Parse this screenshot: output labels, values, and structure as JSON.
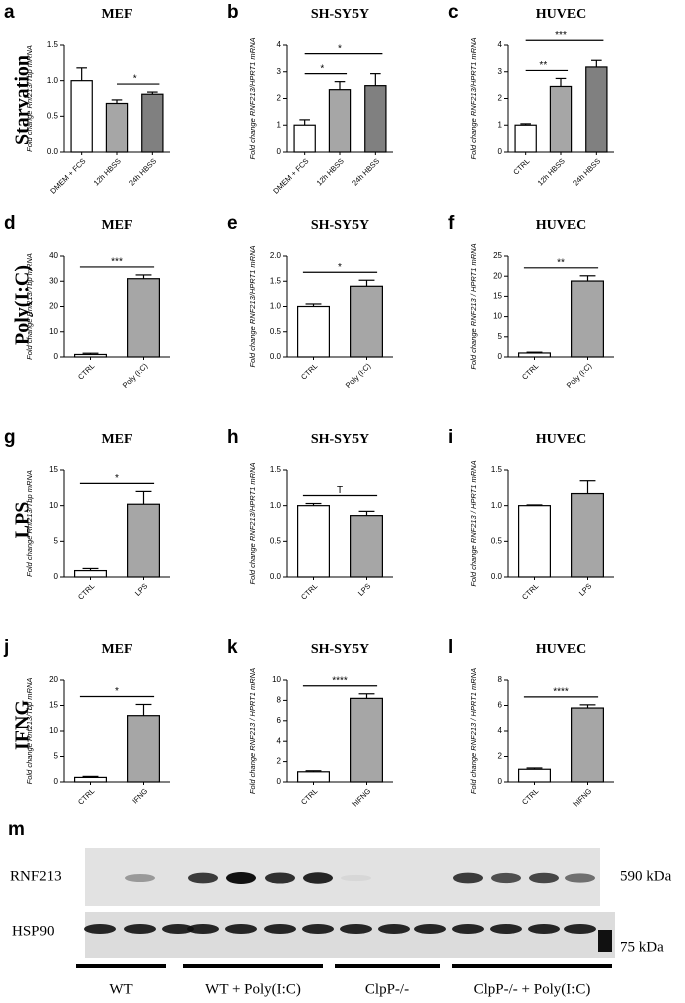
{
  "chart_data": [
    {
      "type": "bar",
      "panel": "a",
      "title": "MEF",
      "ylabel": "Fold change Rnf213/Tbp mRNA",
      "categories": [
        "DMEM + FCS",
        "12h HBSS",
        "24h HBSS"
      ],
      "values": [
        1.0,
        0.68,
        0.81
      ],
      "errors": [
        0.18,
        0.05,
        0.03
      ],
      "colors": [
        "#ffffff",
        "#a6a6a6",
        "#808080"
      ],
      "ylim": [
        0,
        1.5
      ],
      "yticks": [
        {
          "value": 0,
          "label": "0.0"
        },
        {
          "value": 0.5,
          "label": "0.5"
        },
        {
          "value": 1,
          "label": "1.0"
        },
        {
          "value": 1.5,
          "label": "1.5"
        }
      ],
      "annotations": [
        {
          "label": "*",
          "from": "12h HBSS",
          "to": "24h HBSS"
        }
      ]
    },
    {
      "type": "bar",
      "panel": "b",
      "title": "SH-SY5Y",
      "ylabel": "Fold change RNF213/HPRT1 mRNA",
      "categories": [
        "DMEM + FCS",
        "12h HBSS",
        "24h HBSS"
      ],
      "values": [
        1.0,
        2.33,
        2.48
      ],
      "errors": [
        0.2,
        0.3,
        0.45
      ],
      "colors": [
        "#ffffff",
        "#a6a6a6",
        "#808080"
      ],
      "ylim": [
        0,
        4
      ],
      "yticks": [
        0,
        1,
        2,
        3,
        4
      ],
      "annotations": [
        {
          "label": "*",
          "from": "DMEM + FCS",
          "to": "12h HBSS"
        },
        {
          "label": "*",
          "from": "DMEM + FCS",
          "to": "24h HBSS"
        }
      ]
    },
    {
      "type": "bar",
      "panel": "c",
      "title": "HUVEC",
      "ylabel": "Fold change RNF213/HPRT1 mRNA",
      "categories": [
        "CTRL",
        "12h HBSS",
        "24h HBSS"
      ],
      "values": [
        1.0,
        2.45,
        3.18
      ],
      "errors": [
        0.05,
        0.3,
        0.25
      ],
      "colors": [
        "#ffffff",
        "#a6a6a6",
        "#808080"
      ],
      "ylim": [
        0,
        4
      ],
      "yticks": [
        0,
        1,
        2,
        3,
        4
      ],
      "annotations": [
        {
          "label": "**",
          "from": "CTRL",
          "to": "12h HBSS"
        },
        {
          "label": "***",
          "from": "CTRL",
          "to": "24h HBSS"
        }
      ]
    },
    {
      "type": "bar",
      "panel": "d",
      "title": "MEF",
      "ylabel": "Fold change Rnf213/Tbp mRNA",
      "categories": [
        "CTRL",
        "Poly (I:C)"
      ],
      "values": [
        1,
        31
      ],
      "errors": [
        0.5,
        1.5
      ],
      "colors": [
        "#ffffff",
        "#a6a6a6"
      ],
      "ylim": [
        0,
        40
      ],
      "yticks": [
        0,
        10,
        20,
        30,
        40
      ],
      "annotations": [
        {
          "label": "***",
          "from": "CTRL",
          "to": "Poly (I:C)"
        }
      ]
    },
    {
      "type": "bar",
      "panel": "e",
      "title": "SH-SY5Y",
      "ylabel": "Fold change RNF213/HPRT1 mRNA",
      "categories": [
        "CTRL",
        "Poly (I:C)"
      ],
      "values": [
        1.0,
        1.4
      ],
      "errors": [
        0.05,
        0.12
      ],
      "colors": [
        "#ffffff",
        "#a6a6a6"
      ],
      "ylim": [
        0,
        2
      ],
      "yticks": [
        {
          "value": 0,
          "label": "0.0"
        },
        {
          "value": 0.5,
          "label": "0.5"
        },
        {
          "value": 1,
          "label": "1.0"
        },
        {
          "value": 1.5,
          "label": "1.5"
        },
        {
          "value": 2,
          "label": "2.0"
        }
      ],
      "annotations": [
        {
          "label": "*",
          "from": "CTRL",
          "to": "Poly (I:C)"
        }
      ]
    },
    {
      "type": "bar",
      "panel": "f",
      "title": "HUVEC",
      "ylabel": "Fold change RNF213 / HPRT1 mRNA",
      "categories": [
        "CTRL",
        "Poly (I:C)"
      ],
      "values": [
        1,
        18.8
      ],
      "errors": [
        0.2,
        1.3
      ],
      "colors": [
        "#ffffff",
        "#a6a6a6"
      ],
      "ylim": [
        0,
        25
      ],
      "yticks": [
        0,
        5,
        10,
        15,
        20,
        25
      ],
      "annotations": [
        {
          "label": "**",
          "from": "CTRL",
          "to": "Poly (I:C)"
        }
      ]
    },
    {
      "type": "bar",
      "panel": "g",
      "title": "MEF",
      "ylabel": "Fold change Rnf213/Tbp mRNA",
      "categories": [
        "CTRL",
        "LPS"
      ],
      "values": [
        0.9,
        10.2
      ],
      "errors": [
        0.3,
        1.8
      ],
      "colors": [
        "#ffffff",
        "#a6a6a6"
      ],
      "ylim": [
        0,
        15
      ],
      "yticks": [
        0,
        5,
        10,
        15
      ],
      "annotations": [
        {
          "label": "*",
          "from": "CTRL",
          "to": "LPS"
        }
      ]
    },
    {
      "type": "bar",
      "panel": "h",
      "title": "SH-SY5Y",
      "ylabel": "Fold change RNF213/HPRT1 mRNA",
      "categories": [
        "CTRL",
        "LPS"
      ],
      "values": [
        1.0,
        0.86
      ],
      "errors": [
        0.03,
        0.06
      ],
      "colors": [
        "#ffffff",
        "#a6a6a6"
      ],
      "ylim": [
        0,
        1.5
      ],
      "yticks": [
        {
          "value": 0,
          "label": "0.0"
        },
        {
          "value": 0.5,
          "label": "0.5"
        },
        {
          "value": 1,
          "label": "1.0"
        },
        {
          "value": 1.5,
          "label": "1.5"
        }
      ],
      "annotations": [
        {
          "label": "T",
          "from": "CTRL",
          "to": "LPS"
        }
      ]
    },
    {
      "type": "bar",
      "panel": "i",
      "title": "HUVEC",
      "ylabel": "Fold change RNF213 / HPRT1 mRNA",
      "categories": [
        "CTRL",
        "LPS"
      ],
      "values": [
        1.0,
        1.17
      ],
      "errors": [
        0.01,
        0.18
      ],
      "colors": [
        "#ffffff",
        "#a6a6a6"
      ],
      "ylim": [
        0,
        1.5
      ],
      "yticks": [
        {
          "value": 0,
          "label": "0.0"
        },
        {
          "value": 0.5,
          "label": "0.5"
        },
        {
          "value": 1,
          "label": "1.0"
        },
        {
          "value": 1.5,
          "label": "1.5"
        }
      ],
      "annotations": []
    },
    {
      "type": "bar",
      "panel": "j",
      "title": "MEF",
      "ylabel": "Fold change Rnf213/Tbp mRNA",
      "categories": [
        "CTRL",
        "IFNG"
      ],
      "values": [
        0.9,
        13
      ],
      "errors": [
        0.2,
        2.2
      ],
      "colors": [
        "#ffffff",
        "#a6a6a6"
      ],
      "ylim": [
        0,
        20
      ],
      "yticks": [
        0,
        5,
        10,
        15,
        20
      ],
      "annotations": [
        {
          "label": "*",
          "from": "CTRL",
          "to": "IFNG"
        }
      ]
    },
    {
      "type": "bar",
      "panel": "k",
      "title": "SH-SY5Y",
      "ylabel": "Fold change RNF213 / HPRT1 mRNA",
      "categories": [
        "CTRL",
        "hIFNG"
      ],
      "values": [
        1,
        8.2
      ],
      "errors": [
        0.1,
        0.45
      ],
      "colors": [
        "#ffffff",
        "#a6a6a6"
      ],
      "ylim": [
        0,
        10
      ],
      "yticks": [
        0,
        2,
        4,
        6,
        8,
        10
      ],
      "annotations": [
        {
          "label": "****",
          "from": "CTRL",
          "to": "hIFNG"
        }
      ]
    },
    {
      "type": "bar",
      "panel": "l",
      "title": "HUVEC",
      "ylabel": "Fold change RNF213 / HPRT1 mRNA",
      "categories": [
        "CTRL",
        "hIFNG"
      ],
      "values": [
        1,
        5.8
      ],
      "errors": [
        0.1,
        0.25
      ],
      "colors": [
        "#ffffff",
        "#a6a6a6"
      ],
      "ylim": [
        0,
        8
      ],
      "yticks": [
        0,
        2,
        4,
        6,
        8
      ],
      "annotations": [
        {
          "label": "****",
          "from": "CTRL",
          "to": "hIFNG"
        }
      ]
    }
  ],
  "row_labels": [
    "Starvation",
    "Poly(I:C)",
    "LPS",
    "IFNG"
  ],
  "blot": {
    "panel": "m",
    "rows": [
      "RNF213",
      "HSP90"
    ],
    "markers": [
      "590 kDa",
      "75 kDa"
    ],
    "groups": [
      "WT",
      "WT + Poly(I:C)",
      "ClpP-/-",
      "ClpP-/- + Poly(I:C)"
    ]
  }
}
